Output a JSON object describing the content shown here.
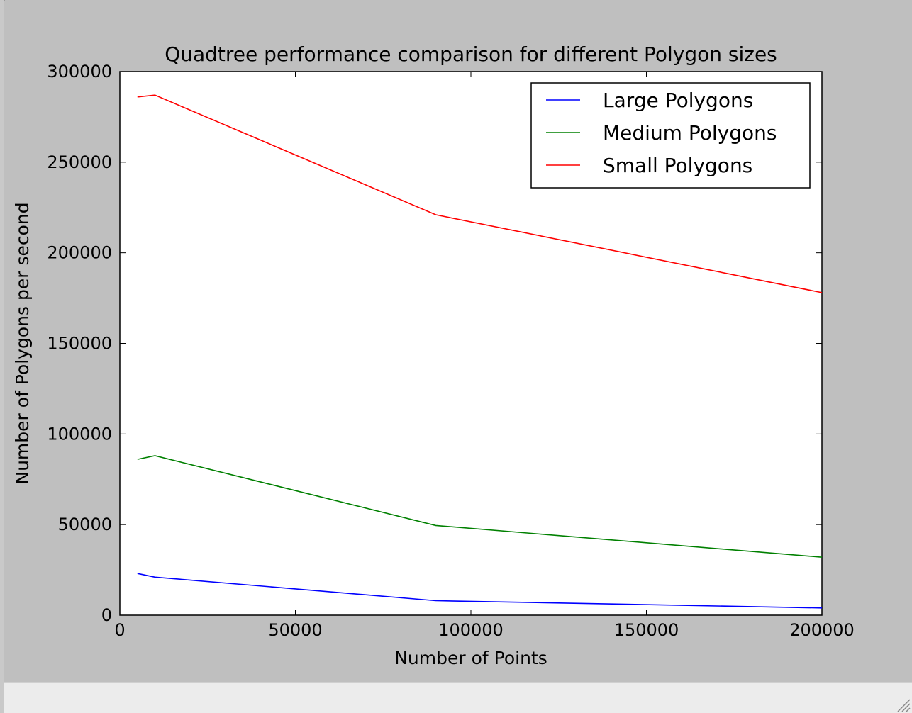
{
  "chart_data": {
    "type": "line",
    "title": "Quadtree performance comparison for different Polygon sizes",
    "xlabel": "Number of Points",
    "ylabel": "Number of Polygons per second",
    "xlim": [
      0,
      200000
    ],
    "ylim": [
      0,
      300000
    ],
    "xticks": [
      0,
      50000,
      100000,
      150000,
      200000
    ],
    "yticks": [
      0,
      50000,
      100000,
      150000,
      200000,
      250000,
      300000
    ],
    "xtick_labels": [
      "0",
      "50000",
      "100000",
      "150000",
      "200000"
    ],
    "ytick_labels": [
      "0",
      "50000",
      "100000",
      "150000",
      "200000",
      "250000",
      "300000"
    ],
    "grid": false,
    "legend_position": "top-right",
    "series": [
      {
        "name": "Large Polygons",
        "color": "#0000ff",
        "x": [
          5000,
          10000,
          90000,
          200000
        ],
        "y": [
          23000,
          21000,
          8000,
          4000
        ]
      },
      {
        "name": "Medium Polygons",
        "color": "#008000",
        "x": [
          5000,
          10000,
          90000,
          200000
        ],
        "y": [
          86000,
          88000,
          49500,
          32000
        ]
      },
      {
        "name": "Small Polygons",
        "color": "#ff0000",
        "x": [
          5000,
          10000,
          90000,
          200000
        ],
        "y": [
          286000,
          287000,
          221000,
          178000
        ]
      }
    ]
  }
}
